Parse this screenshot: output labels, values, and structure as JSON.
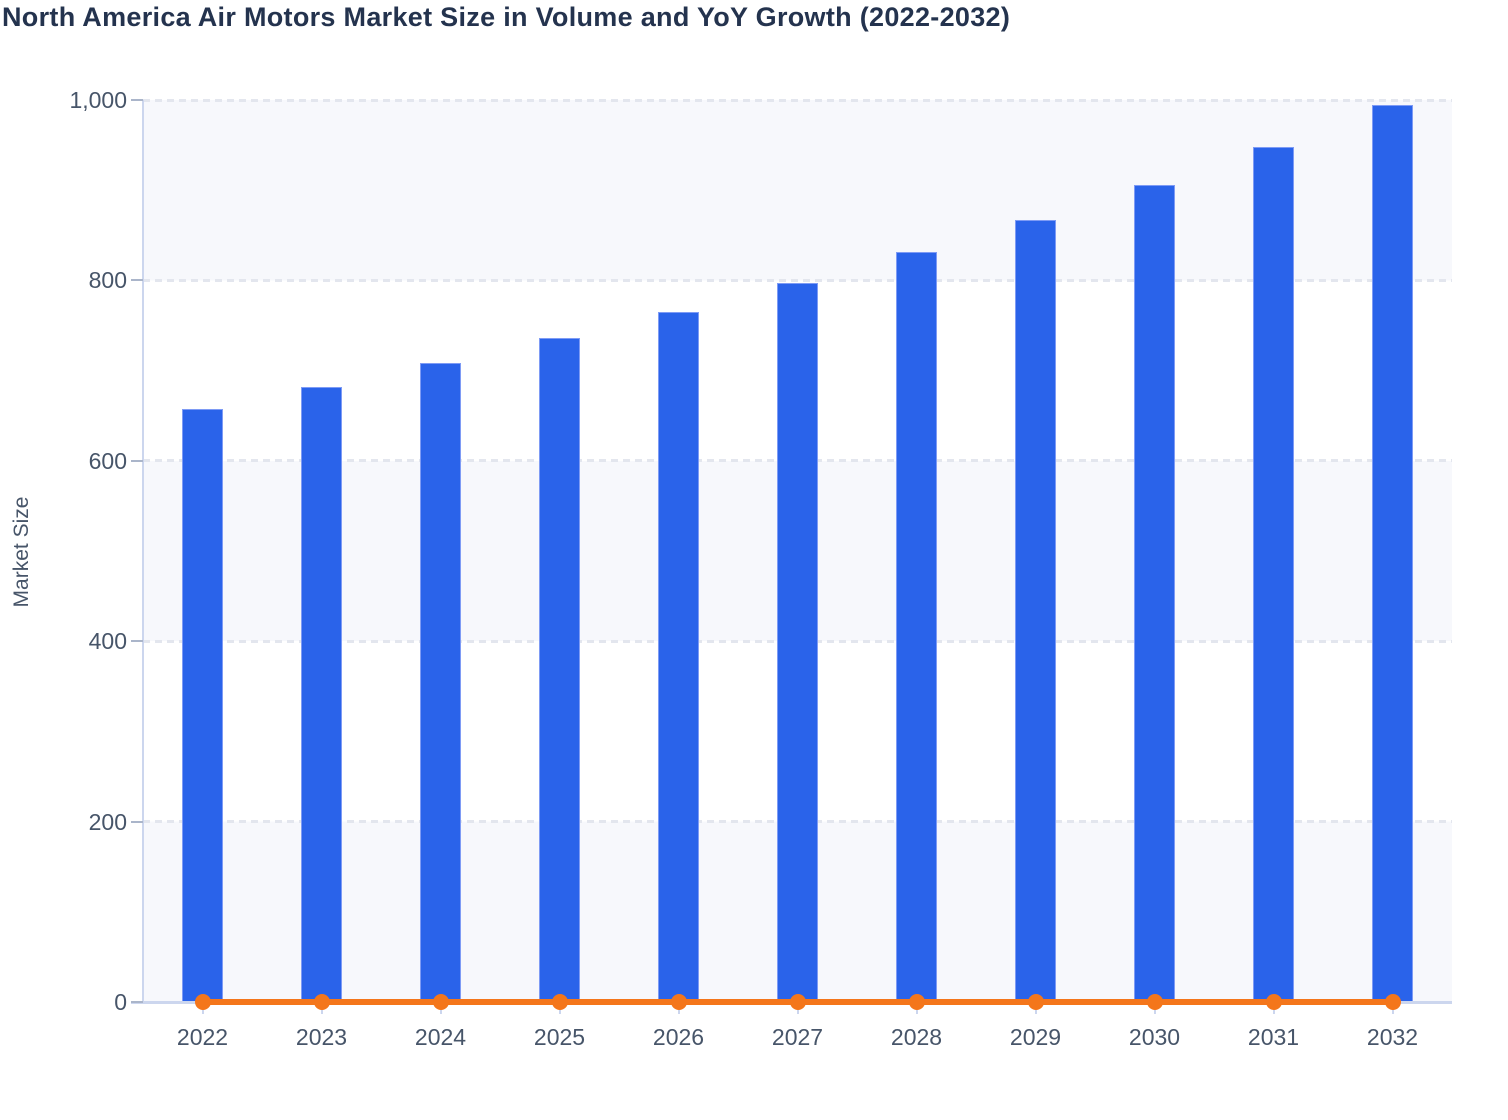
{
  "chart_data": {
    "type": "bar",
    "title": "North America Air Motors Market Size in Volume and YoY Growth (2022-2032)",
    "xlabel": "",
    "ylabel": "Market Size",
    "categories": [
      "2022",
      "2023",
      "2024",
      "2025",
      "2026",
      "2027",
      "2028",
      "2029",
      "2030",
      "2031",
      "2032"
    ],
    "series": [
      {
        "name": "Market Size",
        "type": "bar",
        "color": "#2a63ea",
        "values": [
          657,
          682,
          708,
          736,
          765,
          797,
          831,
          867,
          906,
          948,
          994
        ]
      },
      {
        "name": "YoY Growth",
        "type": "line",
        "color": "#f4761b",
        "unit": "%",
        "values": [
          0,
          3.8,
          3.8,
          4.0,
          3.9,
          4.2,
          4.3,
          4.3,
          4.5,
          4.6,
          4.8
        ],
        "note": "line renders flat at ~0 against the Market Size axis, with a dot at each year"
      }
    ],
    "ylim": [
      0,
      1000
    ],
    "yticks": {
      "values": [
        0,
        200,
        400,
        600,
        800,
        1000
      ],
      "labels": [
        "0",
        "200",
        "400",
        "600",
        "800",
        "1,000"
      ]
    },
    "grid": "dashed horizontal gridlines at each y tick",
    "legend": "none",
    "background_bands": "alternating light bands every 200 units starting tinted at 0",
    "colors": {
      "bar_fill": "#2a63ea",
      "bar_border": "#7e9bf5",
      "line": "#f4761b",
      "title_text": "#24334e",
      "axis_text": "#475569",
      "axis_line": "#ccd6ee",
      "gridline": "#e3e6ee",
      "band_tint": "#f7f8fc",
      "background": "#ffffff"
    }
  }
}
